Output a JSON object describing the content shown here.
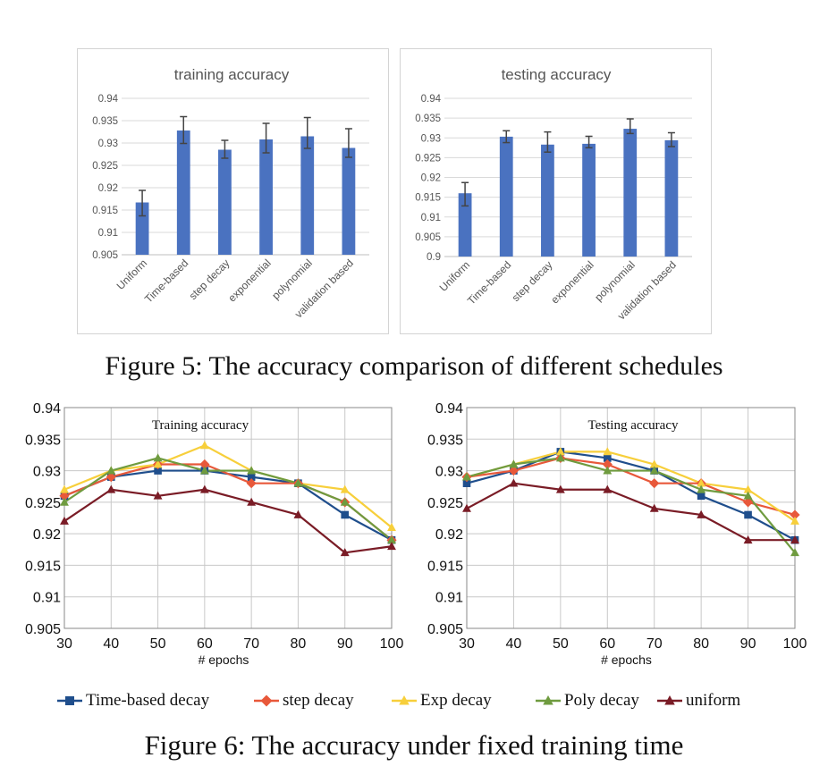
{
  "figure5_caption": "Figure 5: The accuracy comparison of different schedules",
  "figure6_caption": "Figure 6: The accuracy under fixed training time",
  "chart_data": [
    {
      "type": "bar",
      "title": "training accuracy",
      "categories": [
        "Uniform",
        "Time-based",
        "step decay",
        "exponential",
        "polynomial",
        "validation based"
      ],
      "values": [
        0.9167,
        0.9328,
        0.9285,
        0.9308,
        0.9315,
        0.9289
      ],
      "error_low": [
        0.9137,
        0.9299,
        0.9266,
        0.9278,
        0.9288,
        0.9268
      ],
      "error_high": [
        0.9194,
        0.9359,
        0.9306,
        0.9344,
        0.9357,
        0.9332
      ],
      "ylim": [
        0.905,
        0.94
      ],
      "yticks": [
        "0.905",
        "0.91",
        "0.915",
        "0.92",
        "0.925",
        "0.93",
        "0.935",
        "0.94"
      ],
      "color": "#4a72c0",
      "grid": true
    },
    {
      "type": "bar",
      "title": "testing accuracy",
      "categories": [
        "Uniform",
        "Time-based",
        "step decay",
        "exponential",
        "polynomial",
        "validation based"
      ],
      "values": [
        0.916,
        0.9303,
        0.9283,
        0.9285,
        0.9323,
        0.9294
      ],
      "error_low": [
        0.9128,
        0.9288,
        0.9264,
        0.9275,
        0.9311,
        0.9278
      ],
      "error_high": [
        0.9187,
        0.9318,
        0.9315,
        0.9304,
        0.9348,
        0.9313
      ],
      "ylim": [
        0.9,
        0.94
      ],
      "yticks": [
        "0.9",
        "0.905",
        "0.91",
        "0.915",
        "0.92",
        "0.925",
        "0.93",
        "0.935",
        "0.94"
      ],
      "color": "#4a72c0",
      "grid": true
    },
    {
      "type": "line",
      "title": "Training accuracy",
      "xlabel": "# epochs",
      "x": [
        30,
        40,
        50,
        60,
        70,
        80,
        90,
        100
      ],
      "ylim": [
        0.905,
        0.94
      ],
      "yticks": [
        "0.905",
        "0.91",
        "0.915",
        "0.92",
        "0.925",
        "0.93",
        "0.935",
        "0.94"
      ],
      "grid": true,
      "series": [
        {
          "name": "Time-based decay",
          "color": "#1f4e8c",
          "marker": "square",
          "values": [
            0.926,
            0.929,
            0.93,
            0.93,
            0.929,
            0.928,
            0.923,
            0.919
          ]
        },
        {
          "name": "step decay",
          "color": "#e8583a",
          "marker": "diamond",
          "values": [
            0.926,
            0.929,
            0.931,
            0.931,
            0.928,
            0.928,
            0.925,
            0.919
          ]
        },
        {
          "name": "Exp decay",
          "color": "#f7cf3b",
          "marker": "triangle",
          "values": [
            0.927,
            0.93,
            0.931,
            0.934,
            0.93,
            0.928,
            0.927,
            0.921
          ]
        },
        {
          "name": "Poly decay",
          "color": "#6f9b3f",
          "marker": "triangle",
          "values": [
            0.925,
            0.93,
            0.932,
            0.93,
            0.93,
            0.928,
            0.925,
            0.919
          ]
        },
        {
          "name": "uniform",
          "color": "#7a1c26",
          "marker": "triangle",
          "values": [
            0.922,
            0.927,
            0.926,
            0.927,
            0.925,
            0.923,
            0.917,
            0.918
          ]
        }
      ]
    },
    {
      "type": "line",
      "title": "Testing accuracy",
      "xlabel": "# epochs",
      "x": [
        30,
        40,
        50,
        60,
        70,
        80,
        90,
        100
      ],
      "ylim": [
        0.905,
        0.94
      ],
      "yticks": [
        "0.905",
        "0.91",
        "0.915",
        "0.92",
        "0.925",
        "0.93",
        "0.935",
        "0.94"
      ],
      "grid": true,
      "series": [
        {
          "name": "Time-based decay",
          "color": "#1f4e8c",
          "marker": "square",
          "values": [
            0.928,
            0.93,
            0.933,
            0.932,
            0.93,
            0.926,
            0.923,
            0.919
          ]
        },
        {
          "name": "step decay",
          "color": "#e8583a",
          "marker": "diamond",
          "values": [
            0.929,
            0.93,
            0.932,
            0.931,
            0.928,
            0.928,
            0.925,
            0.923
          ]
        },
        {
          "name": "Exp decay",
          "color": "#f7cf3b",
          "marker": "triangle",
          "values": [
            0.929,
            0.931,
            0.933,
            0.933,
            0.931,
            0.928,
            0.927,
            0.922
          ]
        },
        {
          "name": "Poly decay",
          "color": "#6f9b3f",
          "marker": "triangle",
          "values": [
            0.929,
            0.931,
            0.932,
            0.93,
            0.93,
            0.927,
            0.926,
            0.917
          ]
        },
        {
          "name": "uniform",
          "color": "#7a1c26",
          "marker": "triangle",
          "values": [
            0.924,
            0.928,
            0.927,
            0.927,
            0.924,
            0.923,
            0.919,
            0.919
          ]
        }
      ]
    }
  ],
  "legend": [
    {
      "label": "Time-based decay",
      "color": "#1f4e8c",
      "marker": "square"
    },
    {
      "label": "step decay",
      "color": "#e8583a",
      "marker": "diamond"
    },
    {
      "label": "Exp decay",
      "color": "#f7cf3b",
      "marker": "triangle"
    },
    {
      "label": "Poly decay",
      "color": "#6f9b3f",
      "marker": "triangle"
    },
    {
      "label": "uniform",
      "color": "#7a1c26",
      "marker": "triangle"
    }
  ]
}
